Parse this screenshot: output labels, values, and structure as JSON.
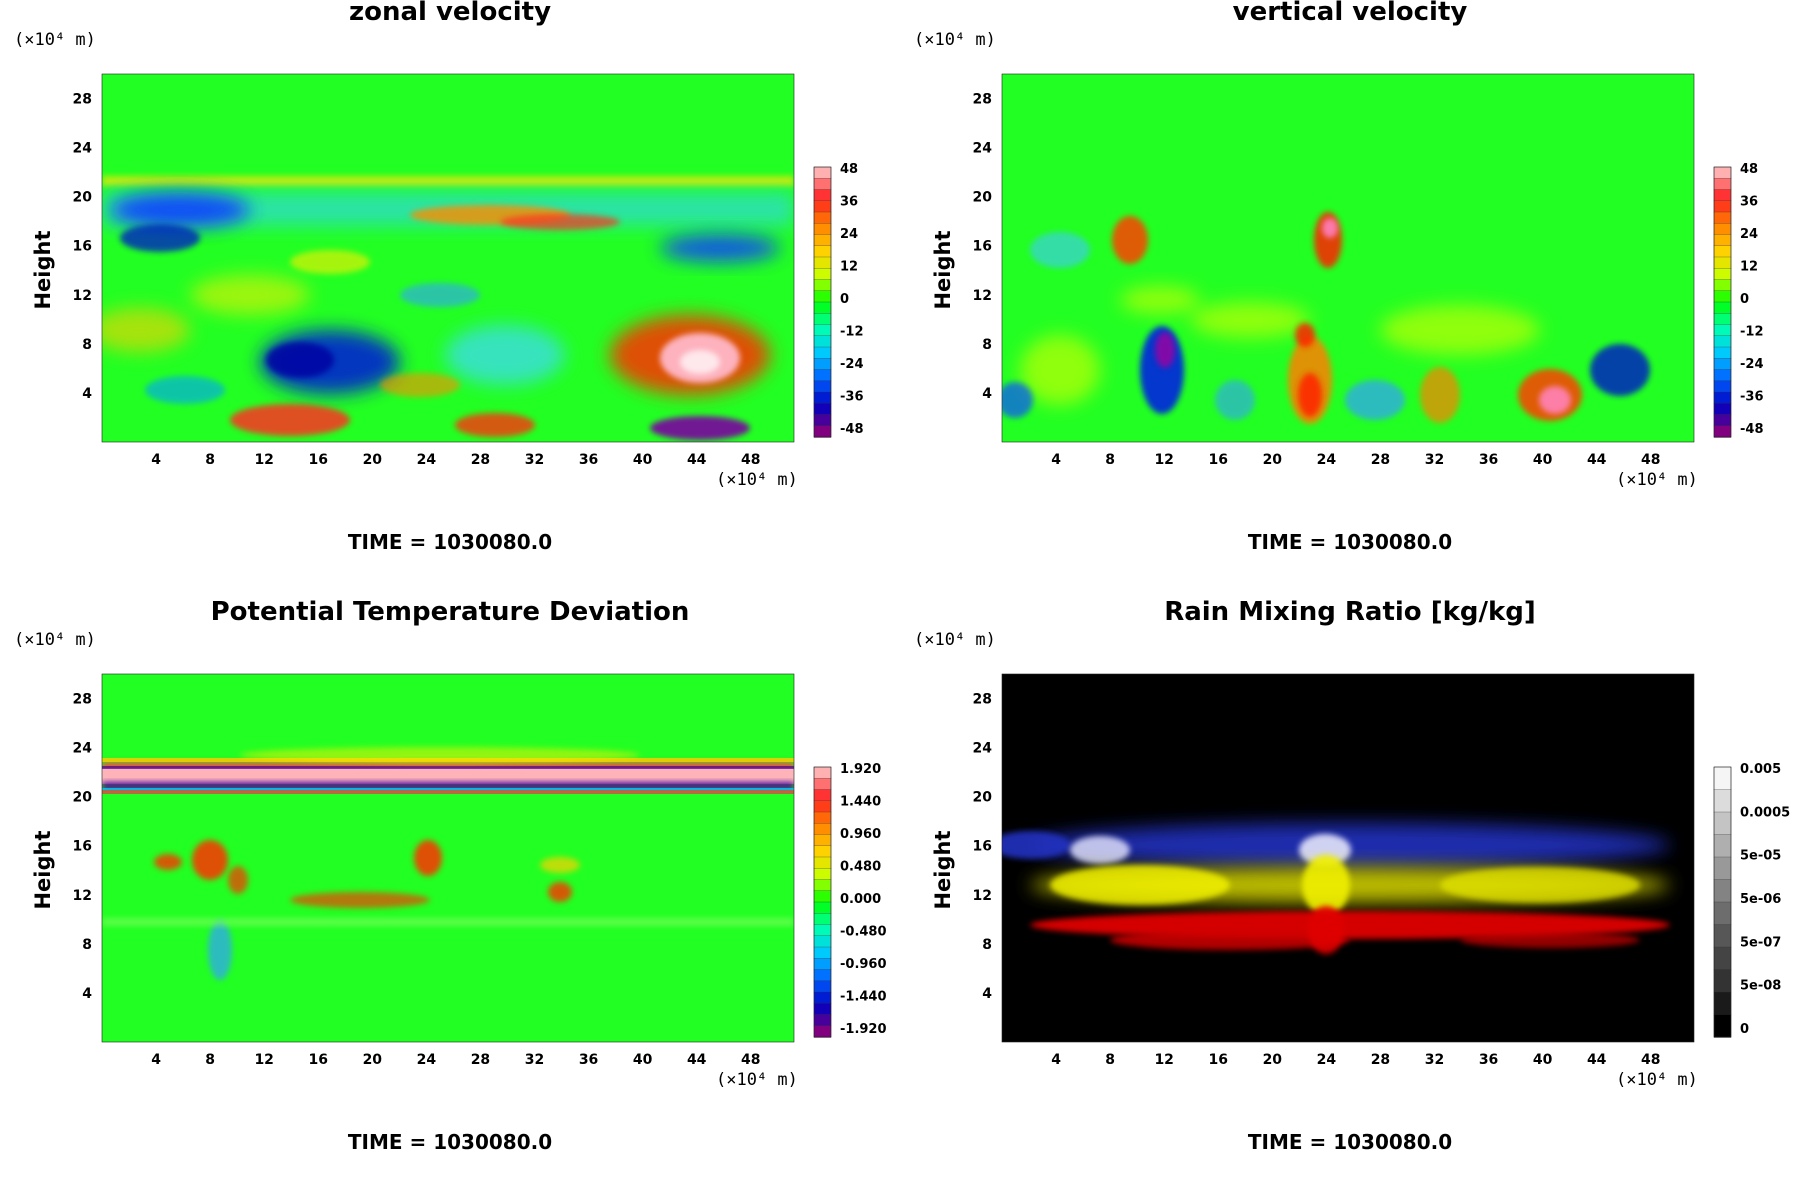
{
  "chart_data": [
    {
      "type": "heatmap",
      "title": "zonal velocity",
      "ylabel": "Height",
      "x_unit": "(×10⁴ m)",
      "y_unit": "(×10⁴ m)",
      "xticks": [
        4,
        8,
        12,
        16,
        20,
        24,
        28,
        32,
        36,
        40,
        44,
        48
      ],
      "yticks": [
        4,
        8,
        12,
        16,
        20,
        24,
        28
      ],
      "xlim": [
        0,
        51.2
      ],
      "ylim": [
        0,
        30
      ],
      "colorbar_ticks": [
        "48",
        "36",
        "24",
        "12",
        "0",
        "-12",
        "-24",
        "-36",
        "-48"
      ],
      "colormap": "rainbow",
      "annotation": "TIME = 1030080.0"
    },
    {
      "type": "heatmap",
      "title": "vertical velocity",
      "ylabel": "Height",
      "x_unit": "(×10⁴ m)",
      "y_unit": "(×10⁴ m)",
      "xticks": [
        4,
        8,
        12,
        16,
        20,
        24,
        28,
        32,
        36,
        40,
        44,
        48
      ],
      "yticks": [
        4,
        8,
        12,
        16,
        20,
        24,
        28
      ],
      "xlim": [
        0,
        51.2
      ],
      "ylim": [
        0,
        30
      ],
      "colorbar_ticks": [
        "48",
        "36",
        "24",
        "12",
        "0",
        "-12",
        "-24",
        "-36",
        "-48"
      ],
      "colormap": "rainbow",
      "annotation": "TIME = 1030080.0"
    },
    {
      "type": "heatmap",
      "title": "Potential Temperature Deviation",
      "ylabel": "Height",
      "x_unit": "(×10⁴ m)",
      "y_unit": "(×10⁴ m)",
      "xticks": [
        4,
        8,
        12,
        16,
        20,
        24,
        28,
        32,
        36,
        40,
        44,
        48
      ],
      "yticks": [
        4,
        8,
        12,
        16,
        20,
        24,
        28
      ],
      "xlim": [
        0,
        51.2
      ],
      "ylim": [
        0,
        30
      ],
      "colorbar_ticks": [
        "1.920",
        "1.440",
        "0.960",
        "0.480",
        "0.000",
        "-0.480",
        "-0.960",
        "-1.440",
        "-1.920"
      ],
      "colormap": "rainbow",
      "annotation": "TIME = 1030080.0"
    },
    {
      "type": "heatmap",
      "title": "Rain Mixing Ratio [kg/kg]",
      "ylabel": "Height",
      "x_unit": "(×10⁴ m)",
      "y_unit": "(×10⁴ m)",
      "xticks": [
        4,
        8,
        12,
        16,
        20,
        24,
        28,
        32,
        36,
        40,
        44,
        48
      ],
      "yticks": [
        4,
        8,
        12,
        16,
        20,
        24,
        28
      ],
      "xlim": [
        0,
        51.2
      ],
      "ylim": [
        0,
        30
      ],
      "colorbar_ticks": [
        "0.005",
        "0.0005",
        "5e-05",
        "5e-06",
        "5e-07",
        "5e-08",
        "0"
      ],
      "colormap": "grayscale",
      "annotation": "TIME = 1030080.0"
    }
  ]
}
